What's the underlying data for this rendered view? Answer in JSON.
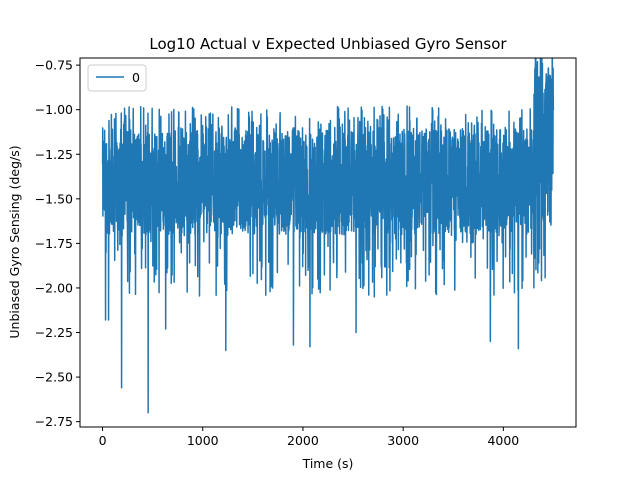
{
  "chart_data": {
    "type": "line",
    "title": "Log10 Actual v Expected Unbiased Gyro Sensor",
    "xlabel": "Time (s)",
    "ylabel": "Unbiased Gyro Sensing (deg/s)",
    "xlim": [
      -225,
      4725
    ],
    "ylim": [
      -2.78,
      -0.71
    ],
    "xticks": [
      0,
      1000,
      2000,
      3000,
      4000
    ],
    "xtick_labels": [
      "0",
      "1000",
      "2000",
      "3000",
      "4000"
    ],
    "yticks": [
      -2.75,
      -2.5,
      -2.25,
      -2.0,
      -1.75,
      -1.5,
      -1.25,
      -1.0,
      -0.75
    ],
    "ytick_labels": [
      "−2.75",
      "−2.50",
      "−2.25",
      "−2.00",
      "−1.75",
      "−1.50",
      "−1.25",
      "−1.00",
      "−0.75"
    ],
    "grid": false,
    "legend": {
      "position": "top-left",
      "entries": [
        "0"
      ]
    },
    "series": [
      {
        "name": "0",
        "color": "#1f77b4",
        "x_range": [
          0,
          4500
        ],
        "summary": {
          "typical_band": [
            -1.7,
            -1.1
          ],
          "late_segment_band": [
            -1.65,
            -0.75
          ],
          "late_segment_start": 4300
        },
        "notable_points": [
          {
            "x": 30,
            "y": -2.18
          },
          {
            "x": 60,
            "y": -2.18
          },
          {
            "x": 190,
            "y": -2.56
          },
          {
            "x": 455,
            "y": -2.7
          },
          {
            "x": 630,
            "y": -2.23
          },
          {
            "x": 1230,
            "y": -2.35
          },
          {
            "x": 1905,
            "y": -2.32
          },
          {
            "x": 2070,
            "y": -2.33
          },
          {
            "x": 2530,
            "y": -2.25
          },
          {
            "x": 3870,
            "y": -2.3
          },
          {
            "x": 4150,
            "y": -2.34
          },
          {
            "x": 4340,
            "y": -0.73
          },
          {
            "x": 4390,
            "y": -0.74
          },
          {
            "x": 4430,
            "y": -0.8
          },
          {
            "x": 4490,
            "y": -0.84
          }
        ]
      }
    ]
  }
}
